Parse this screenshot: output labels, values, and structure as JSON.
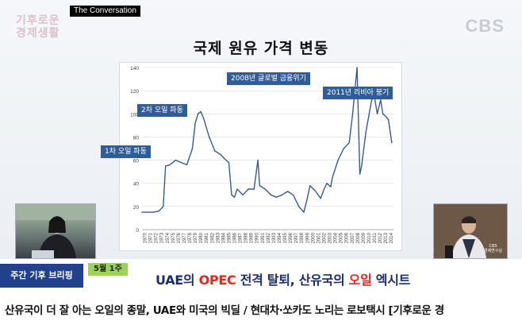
{
  "source_tag": "The Conversation",
  "show_logo": "기후로운 경제생활",
  "network_logo": "CBS",
  "chart_title": "국제 원유 가격 변동",
  "annotations": {
    "oil_shock_1": "1차 오일 파동",
    "oil_shock_2": "2차 오일 파동",
    "financial_crisis": "2008년 글로벌 금융위기",
    "libya": "2011년 리비아 붕기"
  },
  "studio_label": "CBS\n경제연구실",
  "segment_label": "주간 기후 브리핑",
  "date_label": "5월 1주",
  "headline": {
    "part1": "UAE의 ",
    "opec": "OPEC",
    "part2": " 전격 탈퇴, 산유국의 ",
    "oil": "오일",
    "part3": " 엑시트"
  },
  "caption": "산유국이 더 잘 아는 오일의 종말, UAE와 미국의 빅딜 / 현대차·쏘카도 노리는 로보택시 [기후로운 경",
  "colors": {
    "line": "#3c5a86",
    "annotation": "#2f5d98",
    "segment_bg": "#22418d",
    "date_bg": "#9ed15a",
    "headline": "#1c2f6b",
    "headline_red": "#e0281e"
  },
  "chart_data": {
    "type": "line",
    "title": "",
    "xlabel": "",
    "ylabel": "",
    "ylim": [
      0,
      140
    ],
    "yticks": [
      0,
      20,
      40,
      60,
      80,
      100,
      120,
      140
    ],
    "grid": true,
    "legend": "none",
    "xtick_labels": [
      "1970",
      "1971",
      "1972",
      "1973",
      "1974",
      "1975",
      "1976",
      "1977",
      "1978",
      "1979",
      "1980",
      "1981",
      "1982",
      "1983",
      "1984",
      "1985",
      "1986",
      "1987",
      "1988",
      "1989",
      "1990",
      "1991",
      "1992",
      "1993",
      "1994",
      "1995",
      "1996",
      "1997",
      "1998",
      "1999",
      "2000",
      "2001",
      "2002",
      "2003",
      "2004",
      "2005",
      "2006",
      "2007",
      "2008",
      "2009",
      "2010",
      "2011",
      "2012",
      "2013",
      "2014"
    ],
    "x": [
      1970,
      1972,
      1973,
      1973.8,
      1974.2,
      1975,
      1976,
      1977,
      1978,
      1979,
      1979.5,
      1980,
      1980.5,
      1981,
      1982,
      1983,
      1984,
      1985,
      1985.5,
      1986,
      1986.5,
      1987,
      1988,
      1989,
      1990,
      1990.7,
      1991,
      1992,
      1993,
      1994,
      1995,
      1996,
      1997,
      1998,
      1998.9,
      1999.5,
      2000,
      2001,
      2001.9,
      2002.5,
      2003,
      2003.7,
      2004,
      2005,
      2006,
      2007,
      2007.6,
      2008.4,
      2008.9,
      2009.2,
      2010,
      2011,
      2011.5,
      2012,
      2012.6,
      2013,
      2013.5,
      2014,
      2014.6
    ],
    "values": [
      15,
      15,
      16,
      20,
      55,
      56,
      60,
      58,
      56,
      70,
      92,
      100,
      102,
      96,
      80,
      68,
      65,
      60,
      58,
      30,
      28,
      35,
      30,
      35,
      35,
      60,
      38,
      35,
      30,
      28,
      30,
      33,
      30,
      20,
      15,
      27,
      38,
      33,
      27,
      35,
      40,
      37,
      45,
      60,
      70,
      75,
      100,
      140,
      48,
      55,
      85,
      112,
      115,
      100,
      112,
      100,
      98,
      95,
      75
    ]
  }
}
